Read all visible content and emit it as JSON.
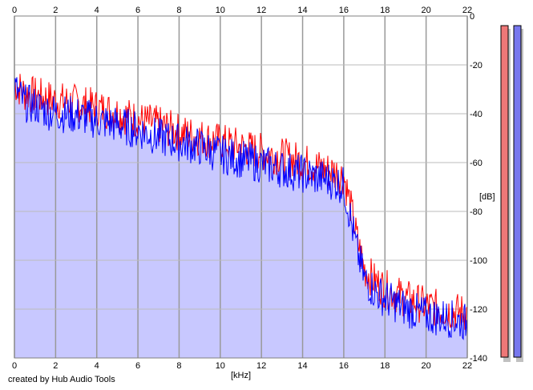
{
  "chart_data": {
    "type": "line",
    "xlabel": "[kHz]",
    "ylabel": "[dB]",
    "xlim": [
      0,
      22
    ],
    "ylim": [
      -140,
      0
    ],
    "x_ticks": [
      0,
      2,
      4,
      6,
      8,
      10,
      12,
      14,
      16,
      18,
      20,
      22
    ],
    "y_ticks": [
      0,
      -20,
      -40,
      -60,
      -80,
      -100,
      -120,
      -140
    ],
    "grid": true,
    "background_fill": "#c8c8ff",
    "series": [
      {
        "color": "#ff0000",
        "x": [
          0,
          0.25,
          0.5,
          1,
          1.5,
          2,
          3,
          4,
          5,
          6,
          7,
          8,
          9,
          10,
          11,
          12,
          13,
          14,
          15,
          15.5,
          16,
          16.3,
          16.6,
          17,
          17.5,
          18,
          19,
          20,
          21,
          22
        ],
        "values": [
          -26,
          -28,
          -30,
          -31,
          -32,
          -33,
          -34,
          -36,
          -38,
          -41,
          -43,
          -46,
          -48,
          -50,
          -52,
          -54,
          -56,
          -58,
          -61,
          -62,
          -64,
          -75,
          -88,
          -102,
          -107,
          -110,
          -114,
          -117,
          -119,
          -120
        ]
      },
      {
        "color": "#0000ff",
        "x": [
          0,
          0.25,
          0.5,
          1,
          1.5,
          2,
          3,
          4,
          5,
          6,
          7,
          8,
          9,
          10,
          11,
          12,
          13,
          14,
          15,
          15.5,
          16,
          16.3,
          16.6,
          17,
          17.5,
          18,
          19,
          20,
          21,
          22
        ],
        "values": [
          -28,
          -31,
          -34,
          -35,
          -37,
          -38,
          -39,
          -41,
          -43,
          -45,
          -48,
          -50,
          -52,
          -55,
          -57,
          -59,
          -61,
          -63,
          -65,
          -66,
          -68,
          -80,
          -93,
          -106,
          -111,
          -114,
          -118,
          -121,
          -122,
          -124
        ]
      }
    ]
  },
  "level_meters": [
    {
      "color": "#ee7777",
      "level": 1.0
    },
    {
      "color": "#7777ee",
      "level": 1.0
    }
  ],
  "credit": "created by Hub Audio Tools"
}
